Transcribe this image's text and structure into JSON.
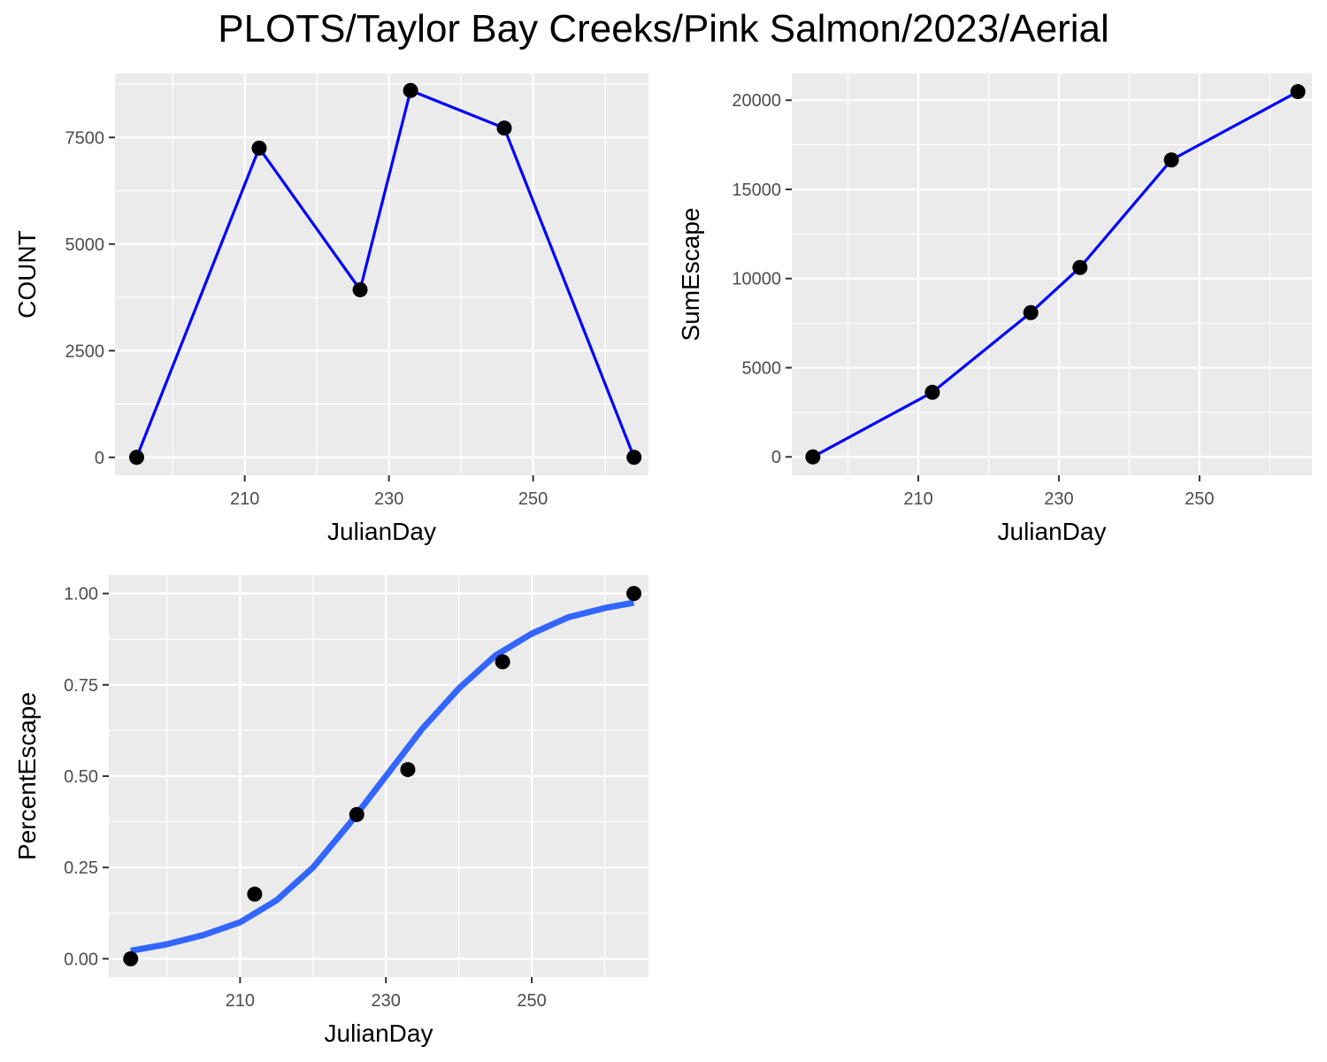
{
  "title": "PLOTS/Taylor Bay Creeks/Pink Salmon/2023/Aerial",
  "colors": {
    "panel_bg": "#EBEBEB",
    "grid": "#FFFFFF",
    "line": "#0000FF",
    "smooth": "#3366FF",
    "point": "#000000"
  },
  "chart_data": [
    {
      "type": "line",
      "xlabel": "JulianDay",
      "ylabel": "COUNT",
      "xlim": [
        192,
        266
      ],
      "ylim": [
        -420,
        9000
      ],
      "xticks": [
        210,
        230,
        250
      ],
      "yticks": [
        0,
        2500,
        5000,
        7500
      ],
      "ytick_labels": [
        "0",
        "2500",
        "5000",
        "7500"
      ],
      "grid": true,
      "series": [
        {
          "x": [
            195,
            212,
            226,
            233,
            246,
            264
          ],
          "y": [
            0,
            7250,
            3930,
            8600,
            7720,
            0
          ]
        }
      ]
    },
    {
      "type": "line",
      "xlabel": "JulianDay",
      "ylabel": "SumEscape",
      "xlim": [
        192,
        266
      ],
      "ylim": [
        -1030,
        21500
      ],
      "xticks": [
        210,
        230,
        250
      ],
      "yticks": [
        0,
        5000,
        10000,
        15000,
        20000
      ],
      "ytick_labels": [
        "0",
        "5000",
        "10000",
        "15000",
        "20000"
      ],
      "grid": true,
      "series": [
        {
          "x": [
            195,
            212,
            226,
            233,
            246,
            264
          ],
          "y": [
            0,
            3620,
            8090,
            10620,
            16650,
            20480
          ]
        }
      ]
    },
    {
      "type": "scatter",
      "xlabel": "JulianDay",
      "ylabel": "PercentEscape",
      "xlim": [
        192,
        266
      ],
      "ylim": [
        -0.05,
        1.05
      ],
      "xticks": [
        210,
        230,
        250
      ],
      "yticks": [
        0,
        0.25,
        0.5,
        0.75,
        1.0
      ],
      "ytick_labels": [
        "0.00",
        "0.25",
        "0.50",
        "0.75",
        "1.00"
      ],
      "grid": true,
      "series": [
        {
          "x": [
            195,
            212,
            226,
            233,
            246,
            264
          ],
          "y": [
            0.0,
            0.177,
            0.395,
            0.518,
            0.813,
            1.0
          ]
        }
      ],
      "smooth_curve": {
        "x": [
          195,
          200,
          205,
          210,
          215,
          220,
          225,
          230,
          235,
          240,
          245,
          250,
          255,
          260,
          264
        ],
        "y": [
          0.022,
          0.04,
          0.065,
          0.1,
          0.16,
          0.25,
          0.37,
          0.5,
          0.63,
          0.74,
          0.83,
          0.89,
          0.935,
          0.96,
          0.975
        ]
      }
    }
  ]
}
